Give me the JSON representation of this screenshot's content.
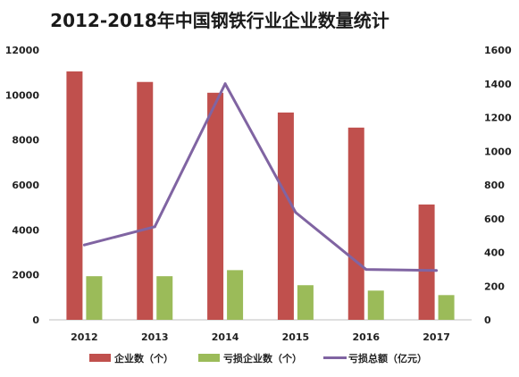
{
  "chart_data": {
    "type": "bar",
    "title": "2012-2018年中国钢铁行业企业数量统计",
    "categories": [
      "2012",
      "2013",
      "2014",
      "2015",
      "2016",
      "2017"
    ],
    "series": [
      {
        "name": "企业数（个）",
        "kind": "bar",
        "axis": "left",
        "color": "#c0504d",
        "values": [
          11050,
          10580,
          10100,
          9220,
          8550,
          5130
        ]
      },
      {
        "name": "亏损企业数（个）",
        "kind": "bar",
        "axis": "left",
        "color": "#9bbb59",
        "values": [
          1940,
          1940,
          2210,
          1540,
          1300,
          1100
        ]
      },
      {
        "name": "亏损总额（亿元）",
        "kind": "line",
        "axis": "right",
        "color": "#8064a2",
        "values": [
          444,
          552,
          1400,
          637,
          299,
          293
        ]
      }
    ],
    "y_left": {
      "ticks": [
        "0",
        "2000",
        "4000",
        "6000",
        "8000",
        "10000",
        "12000"
      ],
      "ylim": [
        0,
        12000
      ]
    },
    "y_right": {
      "ticks": [
        "0",
        "200",
        "400",
        "600",
        "800",
        "1000",
        "1200",
        "1400",
        "1600"
      ],
      "ylim": [
        0,
        1600
      ]
    },
    "grid": false,
    "legend_position": "bottom"
  }
}
